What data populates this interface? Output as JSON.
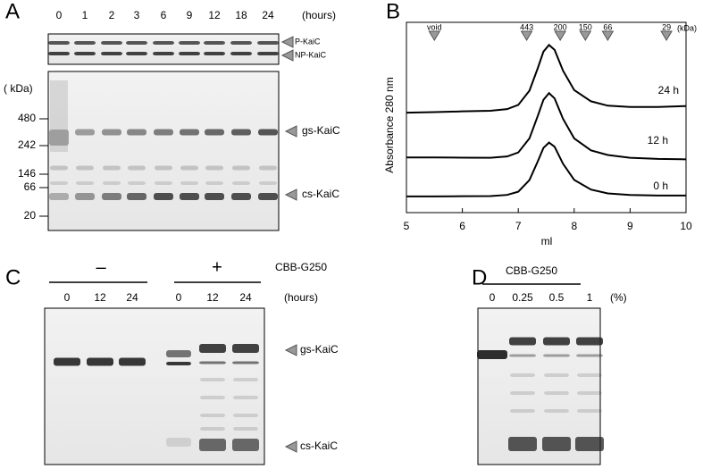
{
  "panels": {
    "a": {
      "letter": "A",
      "lanes": [
        "0",
        "1",
        "2",
        "3",
        "6",
        "9",
        "12",
        "18",
        "24"
      ],
      "lane_unit": "(hours)",
      "top_labels": [
        "P-KaiC",
        "NP-KaiC"
      ],
      "mw_unit": "( kDa)",
      "mw_markers": [
        "480",
        "242",
        "146",
        "66",
        "20"
      ],
      "band_labels": [
        "gs-KaiC",
        "cs-KaiC"
      ]
    },
    "b": {
      "letter": "B"
    },
    "c": {
      "letter": "C",
      "groups": [
        "–",
        "+"
      ],
      "reagent": "CBB-G250",
      "lanes": [
        "0",
        "12",
        "24",
        "0",
        "12",
        "24"
      ],
      "lane_unit": "(hours)",
      "band_labels": [
        "gs-KaiC",
        "cs-KaiC"
      ]
    },
    "d": {
      "letter": "D",
      "reagent": "CBB-G250",
      "lanes": [
        "0",
        "0.25",
        "0.5",
        "1"
      ],
      "lane_unit": "(%)"
    }
  },
  "chart_data": {
    "type": "line",
    "xlabel": "ml",
    "ylabel": "Absorbance 280 nm",
    "x": [
      5,
      5.5,
      6,
      6.5,
      6.8,
      7,
      7.2,
      7.35,
      7.45,
      7.55,
      7.65,
      7.8,
      8,
      8.3,
      8.6,
      9,
      9.5,
      10
    ],
    "series": [
      {
        "name": "24 h",
        "color": "#000000",
        "values": [
          5.25,
          5.28,
          5.32,
          5.35,
          5.44,
          5.66,
          6.41,
          7.6,
          8.46,
          8.81,
          8.55,
          7.46,
          6.44,
          5.85,
          5.62,
          5.55,
          5.55,
          5.6
        ]
      },
      {
        "name": "12 h",
        "color": "#000000",
        "values": [
          2.9,
          2.9,
          2.89,
          2.88,
          2.95,
          3.16,
          3.9,
          5.09,
          5.93,
          6.28,
          6.0,
          4.93,
          3.9,
          3.27,
          3.03,
          2.88,
          2.82,
          2.8
        ]
      },
      {
        "name": "0 h",
        "color": "#000000",
        "values": [
          0.85,
          0.85,
          0.86,
          0.87,
          0.93,
          1.1,
          1.71,
          2.7,
          3.4,
          3.68,
          3.46,
          2.57,
          1.72,
          1.21,
          1.01,
          0.93,
          0.9,
          0.9
        ]
      }
    ],
    "xlim": [
      5,
      10
    ],
    "xticks": [
      5,
      6,
      7,
      8,
      9,
      10
    ],
    "ylim": [
      0,
      10
    ],
    "markers": [
      {
        "label": "void",
        "x": 5.5
      },
      {
        "label": "443",
        "x": 7.15
      },
      {
        "label": "200",
        "x": 7.75
      },
      {
        "label": "150",
        "x": 8.2
      },
      {
        "label": "66",
        "x": 8.6
      },
      {
        "label": "29",
        "x": 9.65
      }
    ],
    "marker_unit": "(kDa)"
  }
}
